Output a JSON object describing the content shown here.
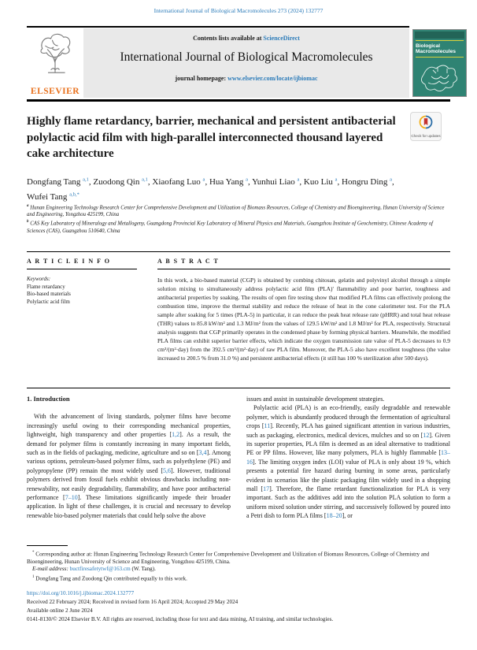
{
  "page": {
    "top_ref": "International Journal of Biological Macromolecules 273 (2024) 132777"
  },
  "header": {
    "contents_line_prefix": "Contents lists available at",
    "sciencedirect": "ScienceDirect",
    "journal_title": "International Journal of Biological Macromolecules",
    "homepage_prefix": "journal homepage:",
    "homepage_url": "www.elsevier.com/locate/ijbiomac",
    "elsevier_logo_text": "ELSEVIER",
    "cover": {
      "title_line1": "Biological",
      "title_line2": "Macromolecules"
    }
  },
  "article": {
    "title_lines": [
      "Highly flame retardancy, barrier, mechanical and persistent antibacterial",
      "polylactic acid film with high-parallel interconnected thousand layered",
      "cake architecture"
    ],
    "check_updates": "Check for updates",
    "authors": [
      {
        "name": "Dongfang Tang",
        "sup": "a,1"
      },
      {
        "name": "Zuodong Qin",
        "sup": "a,1"
      },
      {
        "name": "Xiaofang Luo",
        "sup": "a"
      },
      {
        "name": "Hua Yang",
        "sup": "a"
      },
      {
        "name": "Yunhui Liao",
        "sup": "a"
      },
      {
        "name": "Kuo Liu",
        "sup": "a"
      },
      {
        "name": "Hongru Ding",
        "sup": "a"
      },
      {
        "name": "Wufei Tang",
        "sup": "a,b,*"
      }
    ],
    "affiliations": [
      {
        "sup": "a",
        "text": "Hunan Engineering Technology Research Center for Comprehensive Development and Utilization of Biomass Resources, College of Chemistry and Bioengineering, Hunan University of Science and Engineering, Yongzhou 425199, China"
      },
      {
        "sup": "b",
        "text": "CAS Key Laboratory of Mineralogy and Metallogeny, Guangdong Provincial Key Laboratory of Mineral Physics and Materials, Guangzhou Institute of Geochemistry, Chinese Academy of Sciences (CAS), Guangzhou 510640, China"
      }
    ]
  },
  "info": {
    "article_info_heading": "A R T I C L E  I N F O",
    "keywords_label": "Keywords:",
    "keywords": [
      "Flame retardancy",
      "Bio-based materials",
      "Polylactic acid film"
    ],
    "abstract_heading": "A B S T R A C T",
    "abstract": "In this work, a bio-based material (CGP) is obtained by combing chitosan, gelatin and polyvinyl alcohol through a simple solution mixing to simultaneously address polylactic acid film (PLA)' flammability and poor barrier, toughness and antibacterial properties by soaking. The results of open fire testing show that modified PLA films can effectively prolong the combustion time, improve the thermal stability and reduce the release of heat in the cone calorimeter test. For the PLA sample after soaking for 5 times (PLA-5) in particular, it can reduce the peak heat release rate (pHRR) and total heat release (THR) values to 85.8 kW/m² and 1.3 MJ/m² from the values of 129.5 kW/m² and 1.8 MJ/m² for PLA, respectively. Structural analysis suggests that CGP primarily operates in the condensed phase by forming physical barriers. Meanwhile, the modified PLA films can exhibit superior barrier effects, which indicate the oxygen transmission rate value of PLA-5 decreases to 0.9 cm³/(m²·day) from the 392.5 cm³/(m²·day) of raw PLA film. Moreover, the PLA-5 also have excellent toughness (the value increased to 200.5 % from 31.0 %) and persistent antibacterial effects (it still has 100 % sterilization after 500 days)."
  },
  "body": {
    "section_heading": "1. Introduction",
    "left_paragraphs": [
      {
        "indent": true,
        "text": "With the advancement of living standards, polymer films have become increasingly useful owing to their corresponding mechanical properties, lightweight, high transparency and other properties [1,2]. As a result, the demand for polymer films is constantly increasing in many important fields, such as in the fields of packaging, medicine, agriculture and so on [3,4]. Among various options, petroleum-based polymer films, such as polyethylene (PE) and polypropylene (PP) remain the most widely used [5,6]. However, traditional polymers derived from fossil fuels exhibit obvious drawbacks including non-renewability, not easily degradability, flammability, and have poor antibacterial performance [7–10]. These limitations significantly impede their broader application. In light of these challenges, it is crucial and necessary to develop renewable bio-based polymer materials that could help solve the above"
      }
    ],
    "right_paragraphs": [
      {
        "indent": false,
        "text": "issues and assist in sustainable development strategies."
      },
      {
        "indent": true,
        "text": "Polylactic acid (PLA) is an eco-friendly, easily degradable and renewable polymer, which is abundantly produced through the fermentation of agricultural crops [11]. Recently, PLA has gained significant attention in various industries, such as packaging, electronics, medical devices, mulches and so on [12]. Given its superior properties, PLA film is deemed as an ideal alternative to traditional PE or PP films. However, like many polymers, PLA is highly flammable [13–16]. The limiting oxygen index (LOI) value of PLA is only about 19 %, which presents a potential fire hazard during burning in some areas, particularly evident in scenarios like the plastic packaging film widely used in a shopping mall [17]. Therefore, the flame retardant functionalization for PLA is very important. Such as the additives add into the solution PLA solution to form a uniform mixed solution under stirring, and successively followed by poured into a Petri dish to form PLA films [18–20], or"
      }
    ]
  },
  "footnotes": {
    "corresponding_marker": "*",
    "corresponding_text": "Corresponding author at: Hunan Engineering Technology Research Center for Comprehensive Development and Utilization of Biomass Resources, College of Chemistry and Bioengineering, Hunan University of Science and Engineering, Yongzhou 425199, China.",
    "email_label": "E-mail address:",
    "email": "buctfiresafetytwf@163.cm",
    "email_suffix": " (W. Tang).",
    "contrib_marker": "1",
    "contrib_text": "Dongfang Tang and Zuodong Qin contributed equally to this work."
  },
  "footer": {
    "doi": "https://doi.org/10.1016/j.ijbiomac.2024.132777",
    "received": "Received 22 February 2024; Received in revised form 16 April 2024; Accepted 29 May 2024",
    "available": "Available online 2 June 2024",
    "copyright": "0141-8130/© 2024 Elsevier B.V. All rights are reserved, including those for text and data mining, AI training, and similar technologies."
  },
  "colors": {
    "link_blue": "#2b7bb9",
    "elsevier_orange": "#e9711c",
    "header_box_gray": "#e9e9e9",
    "cover_green": "#2f8373",
    "cover_accent_yellow": "#d9d23a",
    "badge_bookmark_red": "#c4322e",
    "badge_ring_blue": "#2c6ea7",
    "badge_ring_yellow": "#f2b01e"
  }
}
